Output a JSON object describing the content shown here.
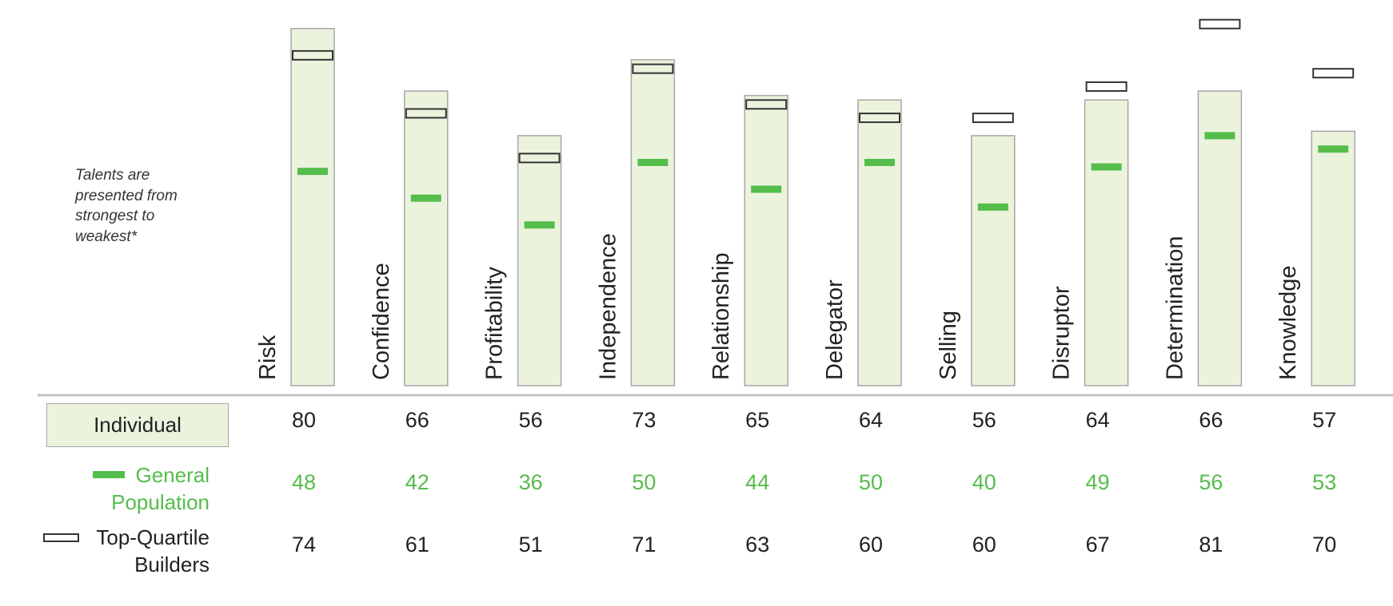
{
  "note": "Talents are\npresented from\nstrongest to\nweakest*",
  "legend": {
    "individual": "Individual",
    "general_population": "General\nPopulation",
    "top_quartile": "Top-Quartile\nBuilders"
  },
  "colors": {
    "individual_fill": "#ebf3dd",
    "individual_stroke": "#a7a7a7",
    "general_population": "#55bd4b",
    "top_quartile": "#333333",
    "axis": "#c0c0c0"
  },
  "chart_data": {
    "type": "bar",
    "categories": [
      "Risk",
      "Confidence",
      "Profitability",
      "Independence",
      "Relationship",
      "Delegator",
      "Selling",
      "Disruptor",
      "Determination",
      "Knowledge"
    ],
    "series": [
      {
        "name": "Individual",
        "style": "bar",
        "values": [
          80,
          66,
          56,
          73,
          65,
          64,
          56,
          64,
          66,
          57
        ]
      },
      {
        "name": "General Population",
        "style": "green-dash-marker",
        "values": [
          48,
          42,
          36,
          50,
          44,
          50,
          40,
          49,
          56,
          53
        ]
      },
      {
        "name": "Top-Quartile Builders",
        "style": "hollow-rect-marker",
        "values": [
          74,
          61,
          51,
          71,
          63,
          60,
          60,
          67,
          81,
          70
        ]
      }
    ],
    "ylim": [
      0,
      83
    ],
    "grid": false,
    "legend_position": "bottom-left"
  }
}
